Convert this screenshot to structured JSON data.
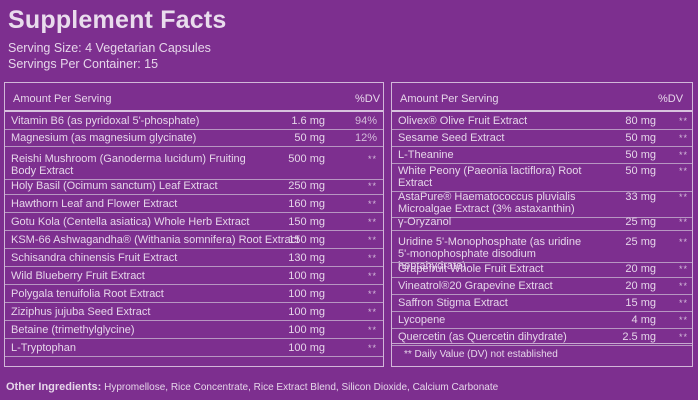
{
  "header": {
    "title": "Supplement Facts",
    "serving_size": "Serving Size: 4 Vegetarian Capsules",
    "servings_per_container": "Servings Per Container: 15"
  },
  "left_panel": {
    "col_amount": "Amount Per Serving",
    "col_dv": "%DV",
    "rows": [
      {
        "name": "Vitamin B6 (as pyridoxal 5'-phosphate)",
        "amount": "1.6 mg",
        "dv": "94%"
      },
      {
        "name": "Magnesium (as magnesium glycinate)",
        "amount": "50 mg",
        "dv": "12%"
      },
      {
        "name": "Reishi Mushroom (Ganoderma lucidum) Fruiting Body Extract",
        "amount": "500 mg",
        "dv": "**"
      },
      {
        "name": "Holy Basil (Ocimum sanctum) Leaf Extract",
        "amount": "250 mg",
        "dv": "**"
      },
      {
        "name": "Hawthorn Leaf and Flower Extract",
        "amount": "160 mg",
        "dv": "**"
      },
      {
        "name": "Gotu Kola (Centella asiatica) Whole Herb Extract",
        "amount": "150 mg",
        "dv": "**"
      },
      {
        "name": "KSM-66 Ashwagandha® (Withania somnifera) Root Extract",
        "amount": "150 mg",
        "dv": "**"
      },
      {
        "name": "Schisandra chinensis Fruit Extract",
        "amount": "130 mg",
        "dv": "**"
      },
      {
        "name": "Wild Blueberry Fruit Extract",
        "amount": "100 mg",
        "dv": "**"
      },
      {
        "name": "Polygala tenuifolia Root Extract",
        "amount": "100 mg",
        "dv": "**"
      },
      {
        "name": "Ziziphus jujuba Seed Extract",
        "amount": "100 mg",
        "dv": "**"
      },
      {
        "name": "Betaine (trimethylglycine)",
        "amount": "100 mg",
        "dv": "**"
      },
      {
        "name": "L-Tryptophan",
        "amount": "100 mg",
        "dv": "**"
      }
    ]
  },
  "right_panel": {
    "col_amount": "Amount Per Serving",
    "col_dv": "%DV",
    "rows": [
      {
        "name": "Olivex® Olive Fruit Extract",
        "amount": "80 mg",
        "dv": "**"
      },
      {
        "name": "Sesame Seed Extract",
        "amount": "50 mg",
        "dv": "**"
      },
      {
        "name": "L-Theanine",
        "amount": "50 mg",
        "dv": "**"
      },
      {
        "name": "White Peony (Paeonia lactiflora) Root Extract",
        "amount": "50 mg",
        "dv": "**"
      },
      {
        "name": "AstaPure® Haematococcus pluvialis Microalgae Extract (3% astaxanthin)",
        "amount": "33 mg",
        "dv": "**"
      },
      {
        "name": "γ-Oryzanol",
        "amount": "25 mg",
        "dv": "**"
      },
      {
        "name": "Uridine 5'-Monophosphate (as uridine 5'-monophosphate disodium heptahydrate)",
        "amount": "25 mg",
        "dv": "**"
      },
      {
        "name": "Grapefruit Whole Fruit Extract",
        "amount": "20 mg",
        "dv": "**"
      },
      {
        "name": "Vineatrol®20 Grapevine Extract",
        "amount": "20 mg",
        "dv": "**"
      },
      {
        "name": "Saffron Stigma Extract",
        "amount": "15 mg",
        "dv": "**"
      },
      {
        "name": "Lycopene",
        "amount": "4 mg",
        "dv": "**"
      },
      {
        "name": "Quercetin (as Quercetin dihydrate)",
        "amount": "2.5 mg",
        "dv": "**"
      }
    ],
    "note": "** Daily Value (DV) not established"
  },
  "other_ingredients": {
    "label": "Other Ingredients:",
    "text": "Hypromellose, Rice Concentrate, Rice Extract Blend, Silicon Dioxide, Calcium Carbonate"
  }
}
